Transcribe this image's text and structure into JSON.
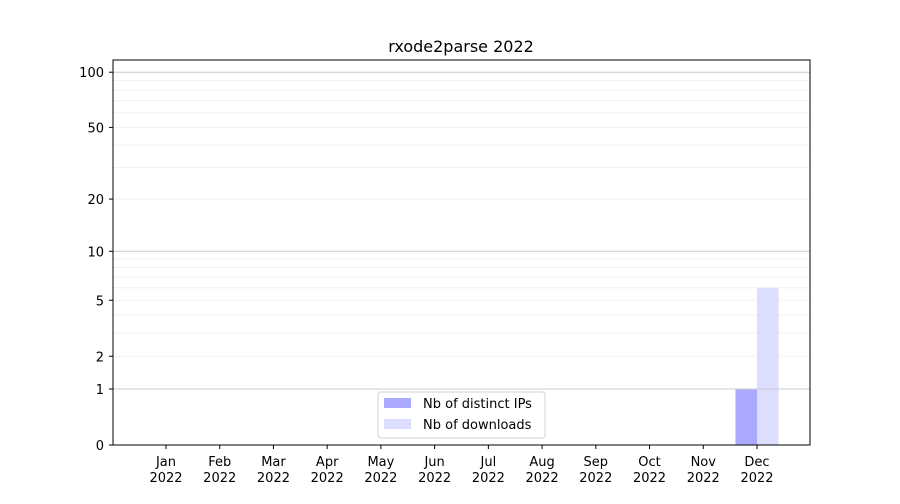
{
  "chart_data": {
    "type": "bar",
    "title": "rxode2parse 2022",
    "xlabel": "",
    "ylabel": "",
    "categories": [
      "Jan\n2022",
      "Feb\n2022",
      "Mar\n2022",
      "Apr\n2022",
      "May\n2022",
      "Jun\n2022",
      "Jul\n2022",
      "Aug\n2022",
      "Sep\n2022",
      "Oct\n2022",
      "Nov\n2022",
      "Dec\n2022"
    ],
    "series": [
      {
        "name": "Nb of distinct IPs",
        "color": "#aaaaff",
        "values": [
          0,
          0,
          0,
          0,
          0,
          0,
          0,
          0,
          0,
          0,
          0,
          1
        ]
      },
      {
        "name": "Nb of downloads",
        "color": "#ddddff",
        "values": [
          0,
          0,
          0,
          0,
          0,
          0,
          0,
          0,
          0,
          0,
          0,
          6
        ]
      }
    ],
    "y_scale": "log(1+y)",
    "yticks": [
      0,
      1,
      2,
      5,
      10,
      20,
      50,
      100
    ],
    "ylim": [
      0,
      114
    ],
    "grid": true,
    "legend_position": "bottom-center"
  }
}
